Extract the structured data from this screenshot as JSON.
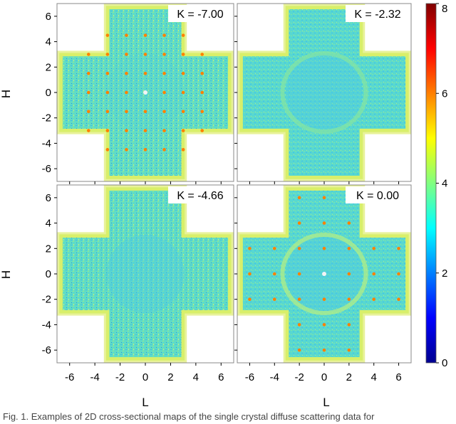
{
  "chart_data": {
    "type": "heatmap",
    "layout": "2x2 panels with shared colorbar",
    "xlabel": "L",
    "ylabel": "H",
    "xlim": [
      -7,
      7
    ],
    "ylim": [
      -7,
      7
    ],
    "xticks": [
      -6,
      -4,
      -2,
      0,
      2,
      4,
      6
    ],
    "yticks": [
      -6,
      -4,
      -2,
      0,
      2,
      4,
      6
    ],
    "colorbar": {
      "range": [
        0,
        8
      ],
      "ticks": [
        0,
        2,
        4,
        6,
        8
      ],
      "colormap": "jet"
    },
    "panels": [
      {
        "label": "K = -7.00",
        "K": -7.0,
        "peaks": "sharp lattice reflections (~6) on a 1.5-spaced grid"
      },
      {
        "label": "K = -2.32",
        "K": -2.32,
        "peaks": "none; diffuse ring-like patterns (~4)"
      },
      {
        "label": "K = -4.66",
        "K": -4.66,
        "peaks": "none; diffuse patterns (~4)"
      },
      {
        "label": "K = 0.00",
        "K": 0.0,
        "peaks": "sharp reflections on a 2-spaced grid, bright center (~8)"
      }
    ]
  },
  "caption": "Fig. 1. Examples of 2D cross-sectional maps of the single crystal diffuse scattering data for"
}
